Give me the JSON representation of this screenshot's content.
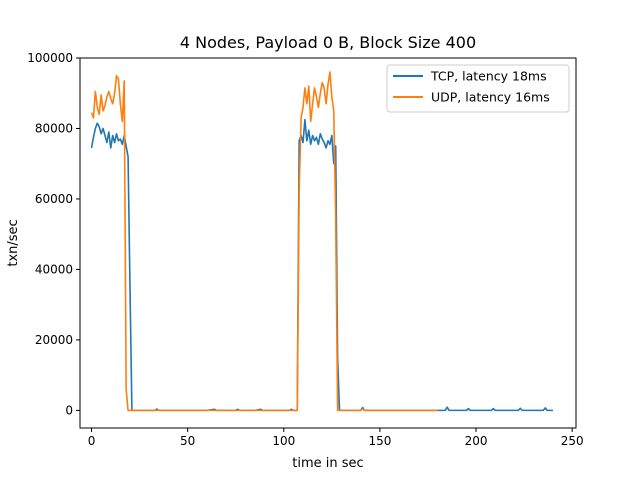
{
  "chart_data": {
    "type": "line",
    "title": "4 Nodes, Payload 0 B, Block Size 400",
    "xlabel": "time in sec",
    "ylabel": "txn/sec",
    "xlim": [
      -6,
      252
    ],
    "ylim": [
      -5000,
      100000
    ],
    "x_ticks": [
      0,
      50,
      100,
      150,
      200,
      250
    ],
    "y_ticks": [
      0,
      20000,
      40000,
      60000,
      80000,
      100000
    ],
    "grid": false,
    "legend_position": "top-right",
    "series": [
      {
        "name": "TCP, latency 18ms",
        "color": "#1f77b4",
        "points": [
          [
            0,
            74500
          ],
          [
            1,
            77500
          ],
          [
            2,
            80000
          ],
          [
            3,
            81500
          ],
          [
            4,
            80500
          ],
          [
            5,
            78500
          ],
          [
            6,
            80000
          ],
          [
            7,
            78000
          ],
          [
            8,
            76000
          ],
          [
            9,
            79000
          ],
          [
            10,
            74500
          ],
          [
            11,
            78000
          ],
          [
            12,
            76000
          ],
          [
            13,
            78500
          ],
          [
            14,
            76500
          ],
          [
            15,
            77000
          ],
          [
            16,
            75500
          ],
          [
            17,
            78000
          ],
          [
            18,
            75000
          ],
          [
            19,
            72000
          ],
          [
            20,
            35000
          ],
          [
            21,
            0
          ],
          [
            22,
            0
          ],
          [
            25,
            0
          ],
          [
            28,
            0
          ],
          [
            30,
            0
          ],
          [
            33,
            0
          ],
          [
            34,
            400
          ],
          [
            35,
            0
          ],
          [
            40,
            0
          ],
          [
            45,
            0
          ],
          [
            50,
            0
          ],
          [
            55,
            0
          ],
          [
            60,
            0
          ],
          [
            64,
            300
          ],
          [
            65,
            0
          ],
          [
            70,
            0
          ],
          [
            75,
            0
          ],
          [
            76,
            300
          ],
          [
            77,
            0
          ],
          [
            80,
            0
          ],
          [
            85,
            0
          ],
          [
            88,
            300
          ],
          [
            89,
            0
          ],
          [
            95,
            0
          ],
          [
            100,
            0
          ],
          [
            103,
            0
          ],
          [
            104,
            300
          ],
          [
            105,
            0
          ],
          [
            106,
            0
          ],
          [
            107,
            0
          ],
          [
            108,
            76500
          ],
          [
            109,
            78000
          ],
          [
            110,
            76000
          ],
          [
            111,
            82500
          ],
          [
            112,
            76500
          ],
          [
            113,
            79500
          ],
          [
            114,
            75500
          ],
          [
            115,
            78000
          ],
          [
            116,
            76500
          ],
          [
            117,
            77500
          ],
          [
            118,
            75500
          ],
          [
            119,
            78500
          ],
          [
            120,
            77000
          ],
          [
            121,
            76000
          ],
          [
            122,
            74500
          ],
          [
            123,
            76500
          ],
          [
            124,
            75500
          ],
          [
            125,
            78000
          ],
          [
            126,
            70000
          ],
          [
            127,
            75000
          ],
          [
            128,
            15000
          ],
          [
            129,
            0
          ],
          [
            130,
            0
          ],
          [
            135,
            0
          ],
          [
            140,
            0
          ],
          [
            141,
            800
          ],
          [
            142,
            0
          ],
          [
            145,
            0
          ],
          [
            150,
            0
          ],
          [
            155,
            0
          ],
          [
            160,
            0
          ],
          [
            165,
            0
          ],
          [
            170,
            0
          ],
          [
            175,
            0
          ],
          [
            180,
            0
          ],
          [
            184,
            0
          ],
          [
            185,
            900
          ],
          [
            186,
            0
          ],
          [
            190,
            0
          ],
          [
            195,
            0
          ],
          [
            196,
            500
          ],
          [
            197,
            0
          ],
          [
            200,
            0
          ],
          [
            205,
            0
          ],
          [
            208,
            0
          ],
          [
            209,
            500
          ],
          [
            210,
            0
          ],
          [
            215,
            0
          ],
          [
            220,
            0
          ],
          [
            222,
            0
          ],
          [
            223,
            600
          ],
          [
            224,
            0
          ],
          [
            230,
            0
          ],
          [
            235,
            0
          ],
          [
            236,
            700
          ],
          [
            237,
            0
          ],
          [
            240,
            0
          ]
        ]
      },
      {
        "name": "UDP, latency 16ms",
        "color": "#ff7f0e",
        "points": [
          [
            0,
            84500
          ],
          [
            1,
            83000
          ],
          [
            2,
            90500
          ],
          [
            3,
            86000
          ],
          [
            4,
            84000
          ],
          [
            5,
            89500
          ],
          [
            6,
            85000
          ],
          [
            7,
            86500
          ],
          [
            8,
            89000
          ],
          [
            9,
            90500
          ],
          [
            10,
            88500
          ],
          [
            11,
            87000
          ],
          [
            12,
            90000
          ],
          [
            13,
            95000
          ],
          [
            14,
            94000
          ],
          [
            15,
            87000
          ],
          [
            16,
            82000
          ],
          [
            17,
            93500
          ],
          [
            18,
            6000
          ],
          [
            19,
            0
          ],
          [
            20,
            0
          ],
          [
            25,
            0
          ],
          [
            30,
            0
          ],
          [
            35,
            0
          ],
          [
            40,
            0
          ],
          [
            45,
            0
          ],
          [
            50,
            0
          ],
          [
            55,
            0
          ],
          [
            60,
            0
          ],
          [
            65,
            0
          ],
          [
            70,
            0
          ],
          [
            75,
            0
          ],
          [
            80,
            0
          ],
          [
            85,
            0
          ],
          [
            90,
            0
          ],
          [
            95,
            0
          ],
          [
            100,
            0
          ],
          [
            105,
            0
          ],
          [
            107,
            0
          ],
          [
            108,
            62000
          ],
          [
            109,
            83000
          ],
          [
            110,
            86000
          ],
          [
            111,
            91500
          ],
          [
            112,
            87000
          ],
          [
            113,
            92000
          ],
          [
            114,
            82000
          ],
          [
            115,
            87000
          ],
          [
            116,
            91500
          ],
          [
            117,
            89000
          ],
          [
            118,
            86000
          ],
          [
            119,
            90000
          ],
          [
            120,
            93000
          ],
          [
            121,
            91500
          ],
          [
            122,
            87000
          ],
          [
            123,
            92500
          ],
          [
            124,
            96000
          ],
          [
            125,
            89000
          ],
          [
            126,
            85000
          ],
          [
            127,
            55000
          ],
          [
            128,
            0
          ],
          [
            129,
            0
          ],
          [
            130,
            0
          ],
          [
            135,
            0
          ],
          [
            140,
            0
          ],
          [
            141,
            400
          ],
          [
            142,
            0
          ],
          [
            145,
            0
          ],
          [
            150,
            0
          ],
          [
            155,
            0
          ],
          [
            160,
            0
          ],
          [
            165,
            0
          ],
          [
            170,
            0
          ],
          [
            175,
            0
          ],
          [
            180,
            0
          ]
        ]
      }
    ]
  }
}
